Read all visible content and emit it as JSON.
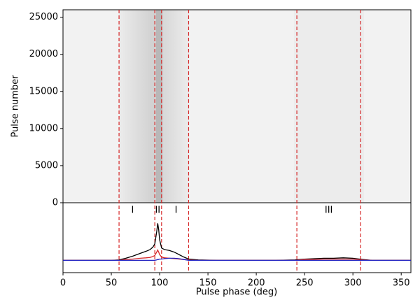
{
  "chart_data": [
    {
      "type": "image",
      "ylabel": "Pulse number",
      "ylim": [
        0,
        26000
      ],
      "yticks": [
        0,
        5000,
        10000,
        15000,
        20000,
        25000
      ],
      "xlim": [
        0,
        360
      ]
    },
    {
      "type": "line",
      "xlabel": "Pulse phase (deg)",
      "xlim": [
        0,
        360
      ],
      "xticks": [
        0,
        50,
        100,
        150,
        200,
        250,
        300,
        350
      ],
      "ylim": [
        -0.3,
        1.4
      ],
      "vlines": [
        58,
        95,
        102,
        130,
        242,
        308
      ],
      "vline_color": "#d62728",
      "annotations": [
        {
          "text": "I",
          "x": 72
        },
        {
          "text": "II",
          "x": 98
        },
        {
          "text": "I",
          "x": 117
        },
        {
          "text": "III",
          "x": 275
        }
      ],
      "x": [
        0,
        10,
        20,
        30,
        40,
        50,
        58,
        65,
        72,
        80,
        86,
        90,
        93,
        95,
        97,
        98,
        99,
        100,
        102,
        105,
        110,
        115,
        120,
        125,
        130,
        140,
        160,
        180,
        200,
        220,
        240,
        250,
        260,
        270,
        280,
        290,
        300,
        310,
        320,
        340,
        360
      ],
      "series": [
        {
          "color": "#000000",
          "values": [
            0,
            0,
            0,
            0,
            0,
            0,
            0.01,
            0.05,
            0.1,
            0.17,
            0.22,
            0.26,
            0.32,
            0.4,
            0.7,
            0.9,
            0.75,
            0.5,
            0.3,
            0.26,
            0.24,
            0.2,
            0.14,
            0.08,
            0.03,
            0.01,
            0,
            0,
            0,
            0,
            0.01,
            0.03,
            0.04,
            0.05,
            0.05,
            0.06,
            0.05,
            0.02,
            0,
            0,
            0
          ]
        },
        {
          "color": "#d62728",
          "values": [
            0,
            0,
            0,
            0,
            0,
            0,
            0,
            0.02,
            0.03,
            0.05,
            0.06,
            0.07,
            0.09,
            0.12,
            0.2,
            0.25,
            0.2,
            0.14,
            0.08,
            0.06,
            0.05,
            0.04,
            0.03,
            0.02,
            0.01,
            0,
            0,
            0,
            0,
            0,
            0,
            0.02,
            0.02,
            0.03,
            0.03,
            0.03,
            0.03,
            0.01,
            0,
            0,
            0
          ]
        },
        {
          "color": "#1f1fbf",
          "values": [
            0,
            0,
            0,
            0,
            0,
            0,
            0,
            0,
            0,
            0,
            0,
            0,
            0,
            0,
            0.01,
            0.02,
            0.02,
            0.03,
            0.03,
            0.04,
            0.05,
            0.05,
            0.04,
            0.02,
            0,
            0,
            0,
            0,
            0,
            0,
            0,
            0,
            0,
            0,
            0,
            0,
            0,
            0,
            0,
            0,
            0
          ]
        }
      ]
    }
  ]
}
